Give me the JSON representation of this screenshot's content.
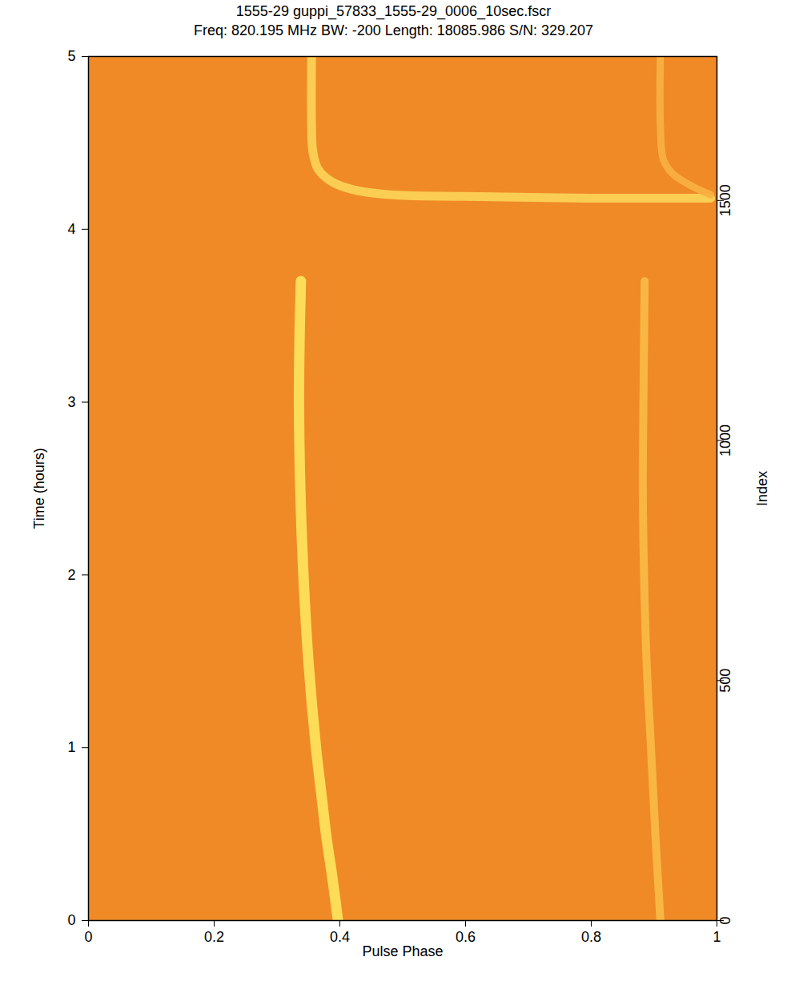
{
  "chart_data": {
    "type": "line",
    "title": "1555-29 guppi_57833_1555-29_0006_10sec.fscr",
    "subtitle": "Freq: 820.195 MHz BW: -200 Length: 18085.986 S/N: 329.207",
    "x_label": "Pulse Phase",
    "y_label": "Time (hours)",
    "y2_label": "Index",
    "xlim": [
      0,
      1
    ],
    "xticks": [
      0,
      0.2,
      0.4,
      0.6,
      0.8,
      1
    ],
    "ylim": [
      0,
      5
    ],
    "yticks": [
      0,
      1,
      2,
      3,
      4,
      5
    ],
    "y2lim": [
      0,
      1800
    ],
    "y2ticks": [
      0,
      500,
      1000,
      1500
    ],
    "grid": false,
    "series": [
      {
        "color": "#fde25a",
        "x": [
          0.397,
          0.388,
          0.378,
          0.37,
          0.362,
          0.35,
          0.342,
          0.337,
          0.335,
          0.336,
          0.338
        ],
        "values": [
          0,
          0.25,
          0.5,
          0.75,
          1,
          1.5,
          2,
          2.5,
          3,
          3.4,
          3.7
        ]
      },
      {
        "color": "#fbd154",
        "x": [
          0.99,
          0.8,
          0.6,
          0.48,
          0.42,
          0.385,
          0.365,
          0.357,
          0.355,
          0.355
        ],
        "values": [
          4.18,
          4.18,
          4.19,
          4.2,
          4.23,
          4.28,
          4.35,
          4.45,
          4.6,
          5
        ]
      },
      {
        "color": "#f9b845",
        "x": [
          0.91,
          0.902,
          0.895,
          0.888,
          0.884,
          0.882,
          0.883,
          0.885
        ],
        "values": [
          0,
          0.5,
          1,
          1.5,
          2,
          2.5,
          3,
          3.7
        ]
      },
      {
        "color": "#f8b040",
        "x": [
          0.99,
          0.96,
          0.93,
          0.915,
          0.91,
          0.91
        ],
        "values": [
          4.2,
          4.25,
          4.32,
          4.4,
          4.6,
          5
        ]
      }
    ]
  }
}
